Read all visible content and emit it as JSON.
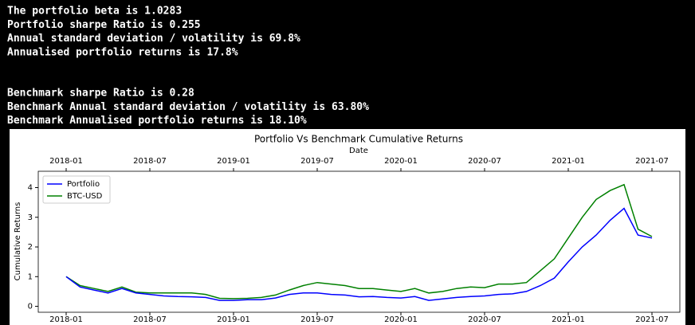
{
  "output_lines": [
    "The portfolio beta is 1.0283",
    "Portfolio sharpe Ratio is 0.255",
    "Annual standard deviation / volatility is 69.8%",
    "Annualised portfolio returns is 17.8%",
    "Benchmark sharpe Ratio is 0.28",
    "Benchmark Annual standard deviation / volatility is 63.80%",
    "Benchmark Annualised portfolio returns is 18.10%"
  ],
  "chart_data": {
    "type": "line",
    "title": "Portfolio Vs Benchmark Cumulative Returns",
    "x_label": "Date",
    "y_label": "Cumulative Returns",
    "x": [
      "2018-01",
      "2018-02",
      "2018-03",
      "2018-04",
      "2018-05",
      "2018-06",
      "2018-07",
      "2018-08",
      "2018-09",
      "2018-10",
      "2018-11",
      "2018-12",
      "2019-01",
      "2019-02",
      "2019-03",
      "2019-04",
      "2019-05",
      "2019-06",
      "2019-07",
      "2019-08",
      "2019-09",
      "2019-10",
      "2019-11",
      "2019-12",
      "2020-01",
      "2020-02",
      "2020-03",
      "2020-04",
      "2020-05",
      "2020-06",
      "2020-07",
      "2020-08",
      "2020-09",
      "2020-10",
      "2020-11",
      "2020-12",
      "2021-01",
      "2021-02",
      "2021-03",
      "2021-04",
      "2021-05",
      "2021-06",
      "2021-07"
    ],
    "series": [
      {
        "name": "Portfolio",
        "color": "#0000ff",
        "values": [
          1.0,
          0.65,
          0.55,
          0.45,
          0.6,
          0.45,
          0.4,
          0.35,
          0.33,
          0.32,
          0.3,
          0.2,
          0.2,
          0.22,
          0.22,
          0.28,
          0.4,
          0.45,
          0.45,
          0.4,
          0.38,
          0.32,
          0.33,
          0.3,
          0.28,
          0.33,
          0.2,
          0.25,
          0.3,
          0.33,
          0.35,
          0.4,
          0.42,
          0.5,
          0.7,
          0.95,
          1.5,
          2.0,
          2.4,
          2.9,
          3.3,
          2.4,
          2.3
        ]
      },
      {
        "name": "BTC-USD",
        "color": "#008000",
        "values": [
          1.0,
          0.7,
          0.6,
          0.5,
          0.65,
          0.48,
          0.45,
          0.45,
          0.45,
          0.45,
          0.4,
          0.27,
          0.26,
          0.27,
          0.3,
          0.38,
          0.55,
          0.7,
          0.8,
          0.75,
          0.7,
          0.6,
          0.6,
          0.55,
          0.5,
          0.6,
          0.45,
          0.5,
          0.6,
          0.65,
          0.63,
          0.75,
          0.75,
          0.8,
          1.2,
          1.6,
          2.3,
          3.0,
          3.6,
          3.9,
          4.1,
          2.6,
          2.35
        ]
      }
    ],
    "xlim": [
      "2017-11",
      "2021-09"
    ],
    "xticks": [
      "2018-01",
      "2018-07",
      "2019-01",
      "2019-07",
      "2020-01",
      "2020-07",
      "2021-01",
      "2021-07"
    ],
    "ylim": [
      -0.2,
      4.55
    ],
    "yticks": [
      0,
      1,
      2,
      3,
      4
    ],
    "legend": "upper left"
  }
}
